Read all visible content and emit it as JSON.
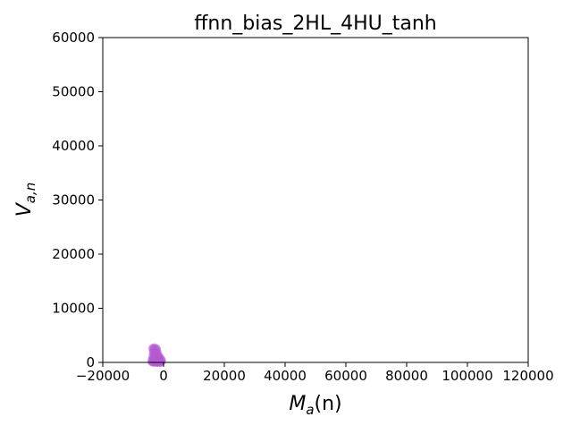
{
  "chart_data": {
    "type": "scatter",
    "title": "ffnn_bias_2HL_4HU_tanh",
    "xlabel": {
      "main": "M",
      "sub": "a",
      "tail": "(n)"
    },
    "ylabel": {
      "main": "V",
      "sub": "a,n"
    },
    "xlim": [
      -20000,
      120000
    ],
    "ylim": [
      0,
      60000
    ],
    "xticks": [
      "−20000",
      "0",
      "20000",
      "40000",
      "60000",
      "80000",
      "100000",
      "120000"
    ],
    "xtick_values": [
      -20000,
      0,
      20000,
      40000,
      60000,
      80000,
      100000,
      120000
    ],
    "yticks": [
      "0",
      "10000",
      "20000",
      "30000",
      "40000",
      "50000",
      "60000"
    ],
    "ytick_values": [
      0,
      10000,
      20000,
      30000,
      40000,
      50000,
      60000
    ],
    "grid": false,
    "point_color": "#b45ad2",
    "points": [
      {
        "x": -3600,
        "y": 2600
      },
      {
        "x": -3300,
        "y": 2450
      },
      {
        "x": -3000,
        "y": 2700
      },
      {
        "x": -2700,
        "y": 2350
      },
      {
        "x": -2400,
        "y": 2550
      },
      {
        "x": -2200,
        "y": 2200
      },
      {
        "x": -3400,
        "y": 1900
      },
      {
        "x": -3100,
        "y": 1700
      },
      {
        "x": -2800,
        "y": 1500
      },
      {
        "x": -2500,
        "y": 1800
      },
      {
        "x": -2200,
        "y": 1400
      },
      {
        "x": -1900,
        "y": 1600
      },
      {
        "x": -1700,
        "y": 1100
      },
      {
        "x": -3500,
        "y": 1200
      },
      {
        "x": -3200,
        "y": 900
      },
      {
        "x": -2900,
        "y": 1050
      },
      {
        "x": -2600,
        "y": 800
      },
      {
        "x": -2300,
        "y": 1000
      },
      {
        "x": -2000,
        "y": 700
      },
      {
        "x": -1700,
        "y": 850
      },
      {
        "x": -1400,
        "y": 600
      },
      {
        "x": -1200,
        "y": 900
      },
      {
        "x": -3700,
        "y": 600
      },
      {
        "x": -3400,
        "y": 400
      },
      {
        "x": -3100,
        "y": 550
      },
      {
        "x": -2800,
        "y": 300
      },
      {
        "x": -2500,
        "y": 450
      },
      {
        "x": -2200,
        "y": 250
      },
      {
        "x": -1900,
        "y": 400
      },
      {
        "x": -1600,
        "y": 200
      },
      {
        "x": -1300,
        "y": 350
      },
      {
        "x": -1000,
        "y": 150
      },
      {
        "x": -3900,
        "y": 150
      },
      {
        "x": -3600,
        "y": 50
      },
      {
        "x": -3300,
        "y": 100
      },
      {
        "x": -3000,
        "y": 30
      },
      {
        "x": -2700,
        "y": 80
      },
      {
        "x": -2400,
        "y": 20
      },
      {
        "x": -2100,
        "y": 60
      },
      {
        "x": -1800,
        "y": 10
      },
      {
        "x": -1500,
        "y": 40
      },
      {
        "x": -1200,
        "y": 20
      },
      {
        "x": -900,
        "y": 50
      },
      {
        "x": -600,
        "y": 300
      },
      {
        "x": -800,
        "y": 500
      }
    ]
  }
}
